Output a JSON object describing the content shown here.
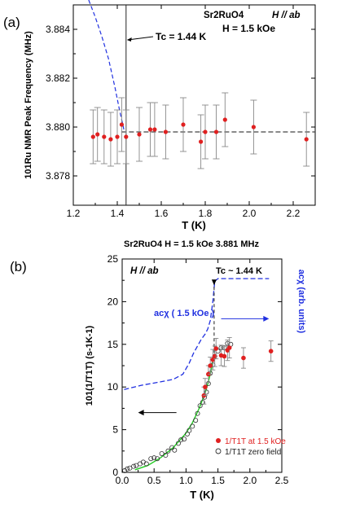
{
  "figure": {
    "panel_a_label": "(a)",
    "panel_b_label": "(b)"
  },
  "chart_data": [
    {
      "type": "scatter",
      "panel": "(a)",
      "annotation_sample": "Sr2RuO4",
      "annotation_field_dir": "H // ab",
      "annotation_field": "H = 1.5 kOe",
      "tc_label": "Tc = 1.44 K",
      "tc_value": 1.44,
      "xlabel": "T (K)",
      "ylabel": "101Ru NMR Peak Frequency (MHz)",
      "xlim": [
        1.2,
        2.3
      ],
      "ylim": [
        3.8768,
        3.885
      ],
      "xticks": [
        1.2,
        1.4,
        1.6,
        1.8,
        2.0,
        2.2
      ],
      "xtick_labels": [
        "1.2",
        "1.4",
        "1.6",
        "1.8",
        "2.0",
        "2.2"
      ],
      "yticks": [
        3.878,
        3.88,
        3.882,
        3.884
      ],
      "ytick_labels": [
        "3.878",
        "3.880",
        "3.882",
        "3.884"
      ],
      "colors": {
        "points": "#e02020",
        "dashed_blue": "#2030e0",
        "errorbar": "#888888",
        "hline": "#444444"
      },
      "series": [
        {
          "marker": "red-dot-with-errorbar",
          "x": [
            1.29,
            1.31,
            1.34,
            1.37,
            1.4,
            1.42,
            1.44,
            1.5,
            1.55,
            1.57,
            1.62,
            1.7,
            1.78,
            1.8,
            1.85,
            1.89,
            2.02,
            2.26
          ],
          "y": [
            3.8796,
            3.8797,
            3.8796,
            3.8795,
            3.8796,
            3.8801,
            3.8796,
            3.8797,
            3.8799,
            3.8799,
            3.8798,
            3.8801,
            3.8794,
            3.8798,
            3.8798,
            3.8803,
            3.88,
            3.8795
          ],
          "err": [
            0.0011,
            0.0011,
            0.0011,
            0.0011,
            0.0011,
            0.0011,
            0.0011,
            0.0011,
            0.0011,
            0.0011,
            0.0011,
            0.0011,
            0.0011,
            0.0011,
            0.0011,
            0.0011,
            0.0011,
            0.0011
          ]
        }
      ],
      "reference_line_y": 3.8798,
      "dashed_curve": {
        "x": [
          1.27,
          1.3,
          1.33,
          1.36,
          1.39,
          1.41,
          1.43
        ],
        "y": [
          3.8852,
          3.8845,
          3.8837,
          3.8828,
          3.8816,
          3.8807,
          3.8799
        ]
      }
    },
    {
      "type": "scatter",
      "panel": "(b)",
      "annotation_header": "Sr2RuO4   H = 1.5 kOe  3.881 MHz",
      "annotation_field_dir": "H // ab",
      "tc_label": "Tc ~ 1.44 K",
      "chi_label": "acχ ( 1.5 kOe )",
      "xlabel": "T (K)",
      "ylabel": "101(1/T1T) (s-1K-1)",
      "right_ylabel": "acχ (arb. units)",
      "xlim": [
        0,
        2.5
      ],
      "ylim": [
        0,
        25
      ],
      "xticks": [
        0,
        0.5,
        1.0,
        1.5,
        2.0,
        2.5
      ],
      "xtick_labels": [
        "0.0",
        "0.5",
        "1.0",
        "1.5",
        "2.0",
        "2.5"
      ],
      "yticks": [
        0,
        5,
        10,
        15,
        20,
        25
      ],
      "ytick_labels": [
        "0",
        "5",
        "10",
        "15",
        "20",
        "25"
      ],
      "colors": {
        "red": "#e02020",
        "open": "#333333",
        "green": "#22cc22",
        "blue": "#2030e0",
        "dashed": "#444444"
      },
      "legend": [
        "1/T1T at 1.5 kOe",
        "1/T1T zero field"
      ],
      "series": [
        {
          "name": "1/T1T at 1.5 kOe",
          "marker": "filled-red-circle",
          "x": [
            1.28,
            1.3,
            1.35,
            1.38,
            1.42,
            1.45,
            1.47,
            1.55,
            1.6,
            1.65,
            1.68,
            1.9,
            2.33
          ],
          "y": [
            9.0,
            10.0,
            11.5,
            12.5,
            13.2,
            13.6,
            14.5,
            13.7,
            13.6,
            14.3,
            14.6,
            13.4,
            14.2
          ],
          "err": [
            1.0,
            1.0,
            1.0,
            1.0,
            1.2,
            1.2,
            1.2,
            1.2,
            1.2,
            1.2,
            1.2,
            1.2,
            1.2
          ]
        },
        {
          "name": "1/T1T zero field",
          "marker": "open-black-circle",
          "x": [
            0.04,
            0.08,
            0.12,
            0.18,
            0.22,
            0.28,
            0.33,
            0.38,
            0.45,
            0.5,
            0.55,
            0.62,
            0.68,
            0.72,
            0.78,
            0.82,
            0.88,
            0.92,
            0.97,
            1.02,
            1.05,
            1.1,
            1.15,
            1.18,
            1.22,
            1.26,
            1.29,
            1.32,
            1.35,
            1.38,
            1.42,
            1.45,
            1.5,
            1.55,
            1.6,
            1.65,
            1.7
          ],
          "y": [
            0.2,
            0.4,
            0.5,
            0.7,
            0.8,
            1.0,
            1.2,
            1.0,
            1.6,
            1.7,
            1.6,
            2.2,
            2.0,
            2.5,
            2.9,
            2.6,
            3.4,
            3.8,
            3.9,
            4.5,
            4.9,
            5.4,
            6.1,
            6.9,
            7.8,
            8.2,
            8.8,
            9.4,
            10.4,
            11.6,
            12.6,
            13.6,
            14.2,
            14.6,
            14.6,
            15.1,
            15.0
          ]
        }
      ],
      "green_fit": {
        "x": [
          0.2,
          0.4,
          0.6,
          0.8,
          1.0,
          1.1,
          1.2,
          1.3,
          1.35,
          1.4,
          1.43
        ],
        "y": [
          0.3,
          0.8,
          1.7,
          2.9,
          4.6,
          5.8,
          7.4,
          9.3,
          10.6,
          12.2,
          13.6
        ]
      },
      "chi_curve": {
        "x": [
          0.03,
          0.3,
          0.6,
          0.8,
          0.95,
          1.05,
          1.12,
          1.18,
          1.24,
          1.3,
          1.34,
          1.38,
          1.42,
          1.45,
          1.5,
          2.3
        ],
        "y": [
          9.7,
          10.2,
          10.6,
          10.9,
          11.5,
          12.8,
          14.0,
          14.8,
          15.6,
          16.2,
          16.8,
          17.8,
          20.0,
          22.4,
          22.7,
          22.7
        ]
      },
      "tc_line_x": 1.44,
      "tc_line_y": [
        14.0,
        22.5
      ],
      "arrow_left": {
        "from_x": 0.85,
        "to_x": 0.25,
        "y": 7.0
      },
      "arrow_right": {
        "from_x": 1.55,
        "to_x": 2.3,
        "y": 18.0
      }
    }
  ]
}
